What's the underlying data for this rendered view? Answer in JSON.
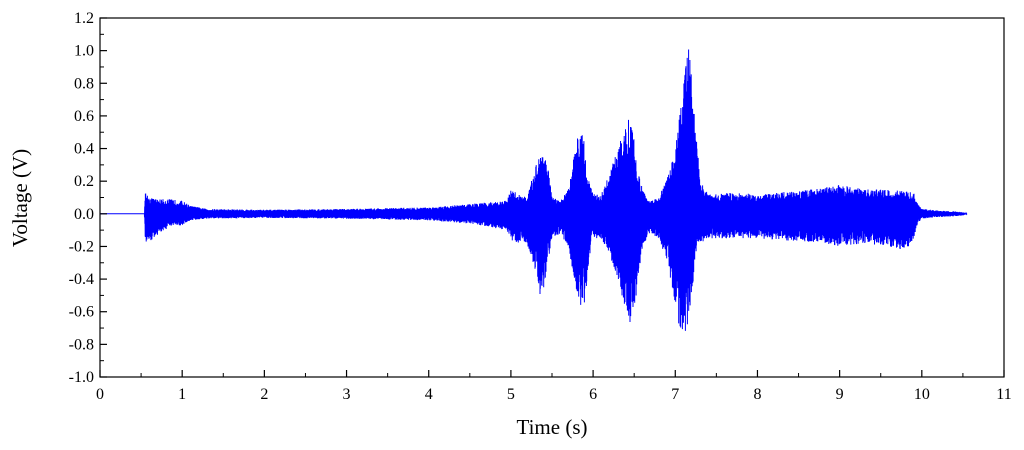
{
  "chart_data": {
    "type": "line",
    "xlabel": "Time (s)",
    "ylabel": "Voltage (V)",
    "xlim": [
      0,
      11
    ],
    "ylim": [
      -1.0,
      1.2
    ],
    "xticks": [
      "0",
      "1",
      "2",
      "3",
      "4",
      "5",
      "6",
      "7",
      "8",
      "9",
      "10",
      "11"
    ],
    "yticks": [
      "-1.0",
      "-0.8",
      "-0.6",
      "-0.4",
      "-0.2",
      "0.0",
      "0.2",
      "0.4",
      "0.6",
      "0.8",
      "1.0",
      "1.2"
    ],
    "grid": false,
    "line_color": "#0000ff",
    "series": [
      {
        "envelope_time": [
          0.0,
          0.54,
          0.55,
          0.6,
          0.7,
          0.85,
          1.0,
          1.1,
          1.3,
          2.0,
          3.0,
          4.0,
          4.5,
          4.95,
          5.0,
          5.1,
          5.2,
          5.3,
          5.35,
          5.4,
          5.45,
          5.5,
          5.6,
          5.7,
          5.8,
          5.85,
          5.9,
          5.95,
          6.0,
          6.1,
          6.2,
          6.3,
          6.4,
          6.45,
          6.5,
          6.55,
          6.6,
          6.7,
          6.8,
          6.9,
          7.0,
          7.05,
          7.1,
          7.15,
          7.2,
          7.25,
          7.3,
          7.4,
          7.5,
          7.6,
          8.0,
          8.5,
          8.8,
          9.0,
          9.3,
          9.6,
          9.8,
          9.9,
          9.95,
          10.0,
          10.2,
          10.4,
          10.5,
          10.55
        ],
        "envelope_max": [
          0.0,
          0.0,
          0.14,
          0.1,
          0.09,
          0.09,
          0.08,
          0.05,
          0.03,
          0.025,
          0.03,
          0.04,
          0.06,
          0.08,
          0.15,
          0.12,
          0.1,
          0.3,
          0.38,
          0.4,
          0.3,
          0.1,
          0.08,
          0.15,
          0.45,
          0.56,
          0.45,
          0.2,
          0.12,
          0.12,
          0.25,
          0.4,
          0.55,
          0.63,
          0.45,
          0.25,
          0.15,
          0.08,
          0.1,
          0.22,
          0.4,
          0.6,
          0.85,
          1.07,
          0.85,
          0.55,
          0.2,
          0.12,
          0.12,
          0.13,
          0.12,
          0.14,
          0.16,
          0.18,
          0.15,
          0.15,
          0.14,
          0.13,
          0.06,
          0.03,
          0.02,
          0.015,
          0.01,
          0.0
        ],
        "envelope_min": [
          0.0,
          0.0,
          -0.19,
          -0.17,
          -0.13,
          -0.08,
          -0.07,
          -0.04,
          -0.03,
          -0.025,
          -0.03,
          -0.04,
          -0.06,
          -0.1,
          -0.16,
          -0.18,
          -0.2,
          -0.35,
          -0.5,
          -0.48,
          -0.3,
          -0.15,
          -0.12,
          -0.2,
          -0.5,
          -0.58,
          -0.55,
          -0.3,
          -0.15,
          -0.15,
          -0.25,
          -0.4,
          -0.6,
          -0.68,
          -0.6,
          -0.4,
          -0.2,
          -0.12,
          -0.15,
          -0.3,
          -0.55,
          -0.7,
          -0.78,
          -0.72,
          -0.5,
          -0.25,
          -0.18,
          -0.15,
          -0.15,
          -0.15,
          -0.15,
          -0.17,
          -0.18,
          -0.2,
          -0.18,
          -0.2,
          -0.23,
          -0.15,
          -0.06,
          -0.03,
          -0.02,
          -0.015,
          -0.01,
          0.0
        ]
      }
    ]
  }
}
